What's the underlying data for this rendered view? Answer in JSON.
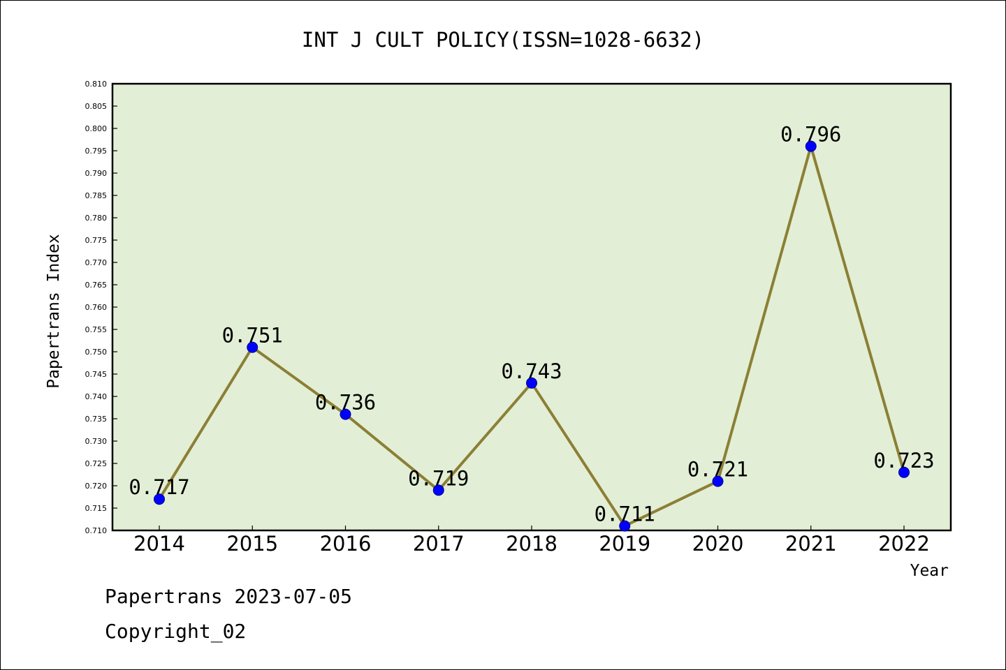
{
  "chart_data": {
    "type": "line",
    "title": "INT J CULT POLICY(ISSN=1028-6632)",
    "xlabel": "Year",
    "ylabel": "Papertrans Index",
    "categories": [
      "2014",
      "2015",
      "2016",
      "2017",
      "2018",
      "2019",
      "2020",
      "2021",
      "2022"
    ],
    "series": [
      {
        "values": [
          0.717,
          0.751,
          0.736,
          0.719,
          0.743,
          0.711,
          0.721,
          0.796,
          0.723
        ],
        "data_labels": [
          "0.717",
          "0.751",
          "0.736",
          "0.719",
          "0.743",
          "0.711",
          "0.721",
          "0.796",
          "0.723"
        ]
      }
    ],
    "ylim": [
      0.71,
      0.81
    ],
    "ytick_step": 0.005,
    "ytick_labels": [
      "0.710",
      "0.715",
      "0.720",
      "0.725",
      "0.730",
      "0.735",
      "0.740",
      "0.745",
      "0.750",
      "0.755",
      "0.760",
      "0.765",
      "0.770",
      "0.775",
      "0.780",
      "0.785",
      "0.790",
      "0.795",
      "0.800",
      "0.805",
      "0.810"
    ],
    "grid": false,
    "legend": "none",
    "colors": {
      "plot_background": "#e2efd6",
      "line": "#8c7f35",
      "marker": "#0000ff",
      "frame": "#000000"
    }
  },
  "footer": {
    "source": "Papertrans 2023-07-05",
    "copyright": "Copyright_02"
  }
}
